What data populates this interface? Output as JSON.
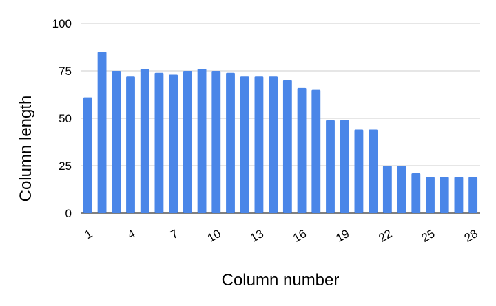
{
  "chart_data": {
    "type": "bar",
    "title": "",
    "xlabel": "Column number",
    "ylabel": "Column length",
    "categories": [
      1,
      2,
      3,
      4,
      5,
      6,
      7,
      8,
      9,
      10,
      11,
      12,
      13,
      14,
      15,
      16,
      17,
      18,
      19,
      20,
      21,
      22,
      23,
      24,
      25,
      26,
      27,
      28
    ],
    "values": [
      61,
      85,
      75,
      72,
      76,
      74,
      73,
      75,
      76,
      75,
      74,
      72,
      72,
      72,
      70,
      66,
      65,
      49,
      49,
      44,
      44,
      25,
      25,
      21,
      19,
      19,
      19,
      19
    ],
    "ylim": [
      0,
      100
    ],
    "yticks": [
      "0",
      "25",
      "50",
      "75",
      "100"
    ],
    "xticks": [
      "1",
      "4",
      "7",
      "10",
      "13",
      "16",
      "19",
      "22",
      "25",
      "28"
    ],
    "grid": true,
    "legend": "none",
    "bar_color": "#4a86e8",
    "grid_color": "#cccccc",
    "axis_color": "#333333"
  }
}
